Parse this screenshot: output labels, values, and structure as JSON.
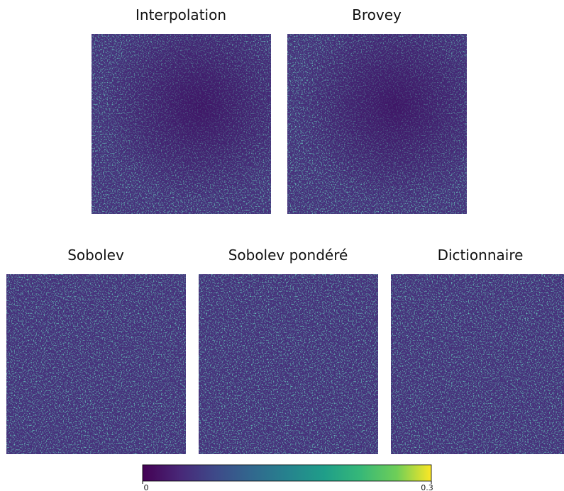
{
  "panels": [
    {
      "title": "Interpolation"
    },
    {
      "title": "Brovey"
    },
    {
      "title": "Sobolev"
    },
    {
      "title": "Sobolev pondéré"
    },
    {
      "title": "Dictionnaire"
    }
  ],
  "colorbar": {
    "lim": [
      0,
      0.3
    ],
    "ticks": [
      0,
      0.3
    ]
  }
}
